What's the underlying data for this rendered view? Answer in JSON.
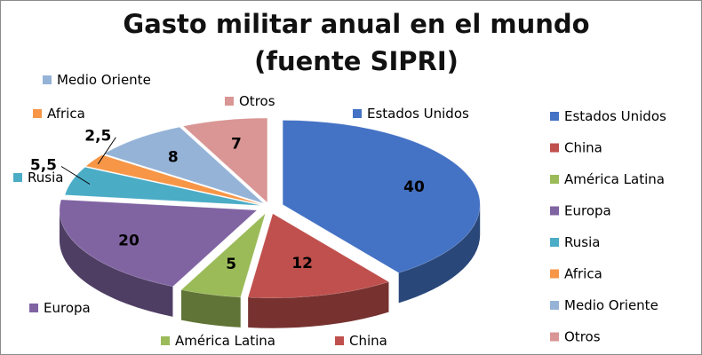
{
  "chart_data": {
    "type": "pie",
    "title_lines": [
      "Gasto militar anual en el mundo",
      "(fuente SIPRI)"
    ],
    "slices": [
      {
        "label": "Estados Unidos",
        "value": 40,
        "color": "#4472C4"
      },
      {
        "label": "China",
        "value": 12,
        "color": "#C0504D"
      },
      {
        "label": "América Latina",
        "value": 5,
        "color": "#9BBB59"
      },
      {
        "label": "Europa",
        "value": 20,
        "color": "#8064A2"
      },
      {
        "label": "Rusia",
        "value": 5.5,
        "color": "#4BACC6"
      },
      {
        "label": "Africa",
        "value": 2.5,
        "color": "#F79646"
      },
      {
        "label": "Medio Oriente",
        "value": 8,
        "color": "#95B3D7"
      },
      {
        "label": "Otros",
        "value": 7,
        "color": "#D99694"
      }
    ],
    "value_labels": [
      "40",
      "12",
      "5",
      "20",
      "5,5",
      "2,5",
      "8",
      "7"
    ],
    "legend_placement": "right",
    "style": "3d-exploded-perspective"
  }
}
